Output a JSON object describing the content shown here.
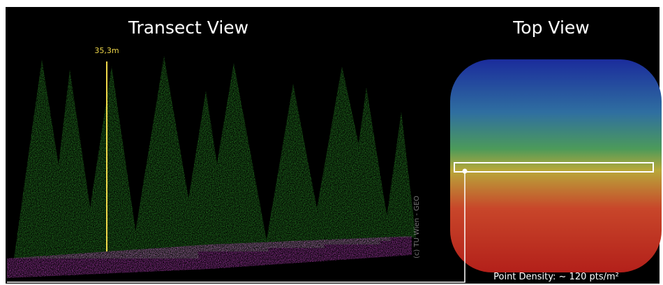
{
  "transect": {
    "title": "Transect View",
    "height_label": "35,3m",
    "copyright": "(c) TU Wien - GEO"
  },
  "top": {
    "title": "Top View",
    "density_label": "Point Density: ~ 120 pts/m²"
  }
}
